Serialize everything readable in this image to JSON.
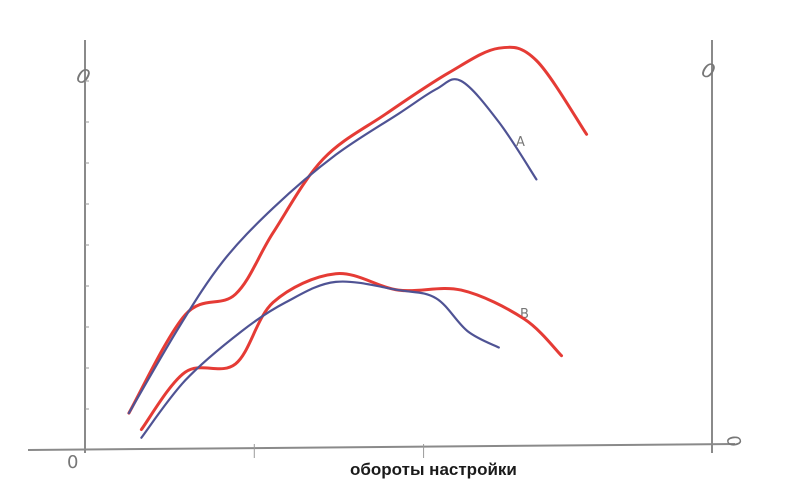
{
  "chart_data": {
    "type": "line",
    "title": "",
    "xlabel": "обороты настройки",
    "ylabel": "",
    "grid": false,
    "axis_labels": {
      "origin": "0",
      "y_left_top": "0",
      "y_right_top": "0",
      "x_end": "0"
    },
    "x_range": [
      0,
      100
    ],
    "y_range": [
      0,
      100
    ],
    "curve_labels": [
      "A",
      "B"
    ],
    "colors": {
      "red": "#e53b35",
      "blue": "#4f5394",
      "axis": "#8a8a8a"
    },
    "series": [
      {
        "group": "A",
        "color": "red",
        "x": [
          7,
          16,
          24,
          30,
          38,
          48,
          58,
          66,
          72,
          80
        ],
        "y": [
          9,
          33,
          38,
          53,
          71,
          82,
          92,
          98,
          95,
          77
        ]
      },
      {
        "group": "A",
        "color": "blue",
        "x": [
          7,
          15,
          22,
          30,
          40,
          50,
          56,
          60,
          66,
          72
        ],
        "y": [
          9,
          30,
          46,
          59,
          72,
          82,
          88,
          90,
          80,
          66
        ]
      },
      {
        "group": "B",
        "color": "red",
        "x": [
          9,
          16,
          24,
          30,
          40,
          50,
          60,
          70,
          76
        ],
        "y": [
          5,
          19,
          21,
          36,
          43,
          39,
          39,
          32,
          23
        ]
      },
      {
        "group": "B",
        "color": "blue",
        "x": [
          9,
          16,
          25,
          32,
          40,
          50,
          56,
          61,
          66
        ],
        "y": [
          3,
          17,
          29,
          36,
          41,
          39,
          37,
          29,
          25
        ]
      }
    ]
  }
}
